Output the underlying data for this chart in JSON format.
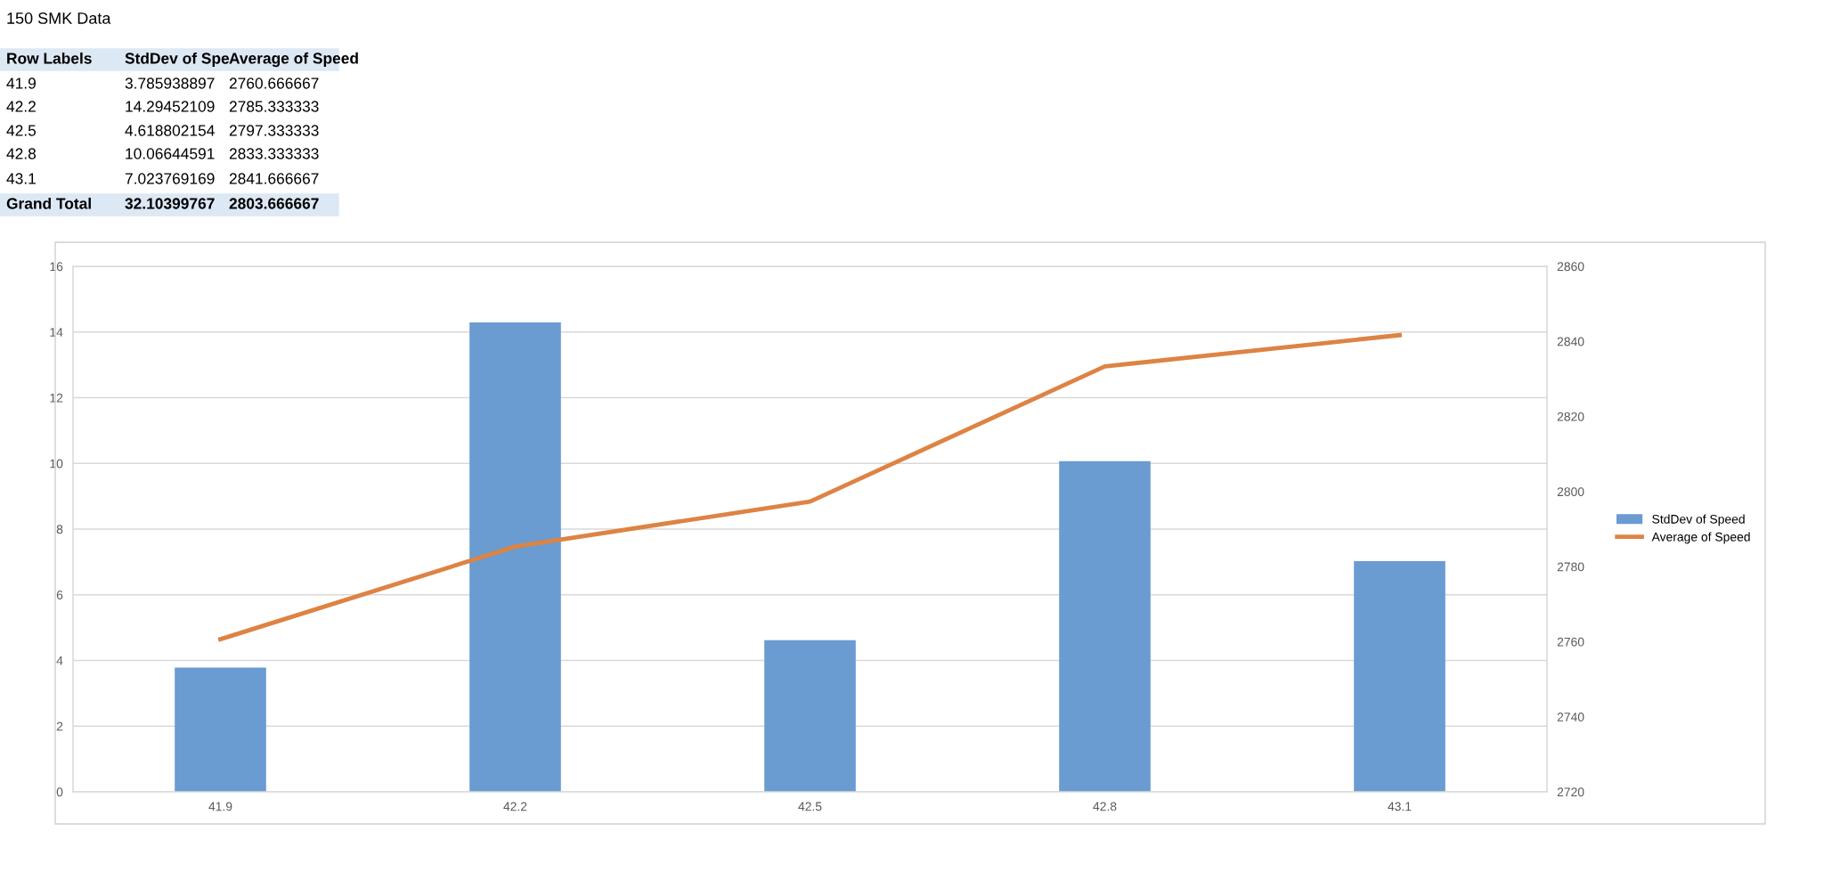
{
  "chart_data": {
    "type": "bar",
    "categories": [
      "41.9",
      "42.2",
      "42.5",
      "42.8",
      "43.1"
    ],
    "series": [
      {
        "name": "StdDev of Speed",
        "color": "#6a9bd1",
        "values": [
          3.785938897,
          14.29452109,
          4.618802154,
          10.06644591,
          7.023769169
        ]
      },
      {
        "name": "Average of Speed",
        "type": "line",
        "axis": "y2",
        "color": "#dd8344",
        "values": [
          2760.666667,
          2785.333333,
          2797.333333,
          2833.333333,
          2841.666667
        ]
      }
    ],
    "ylim": [
      0,
      16
    ],
    "yticks": [
      0,
      2,
      4,
      6,
      8,
      10,
      12,
      14,
      16
    ],
    "y2lim": [
      2720,
      2860
    ],
    "y2ticks": [
      2720,
      2740,
      2760,
      2780,
      2800,
      2820,
      2840,
      2860
    ],
    "grid": "y",
    "legend": "right",
    "marker": "none",
    "line_style": "solid",
    "annotations": [
      "150 SMK Data",
      "Row Labels",
      "StdDev of Spe",
      "Average of Speed",
      "41.9",
      "3.785938897",
      "2760.666667",
      "42.2",
      "14.29452109",
      "2785.333333",
      "42.5",
      "4.618802154",
      "2797.333333",
      "42.8",
      "10.06644591",
      "2833.333333",
      "43.1",
      "7.023769169",
      "2841.666667",
      "Grand Total",
      "32.10399767",
      "2803.666667"
    ]
  }
}
